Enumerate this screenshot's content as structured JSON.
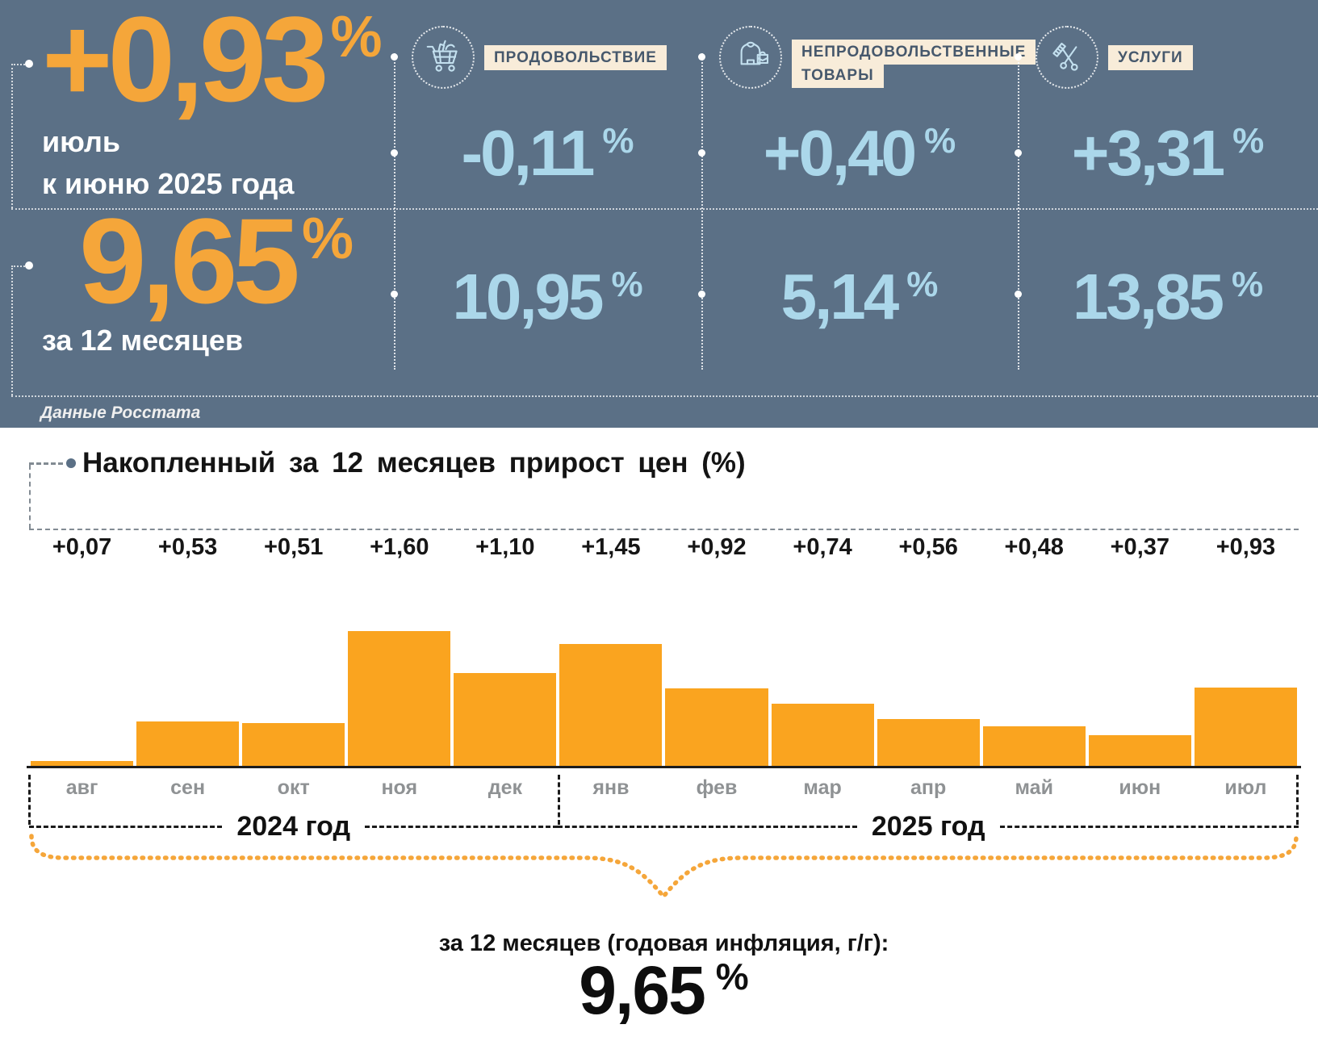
{
  "colors": {
    "hero_bg": "#5B7086",
    "accent_orange": "#F5A63A",
    "bar_orange": "#FAA41F",
    "value_blue": "#ABD7EA",
    "cream": "#F8ECD9",
    "label_text": "#46586C",
    "month_gray": "#8F9294",
    "axis_black": "#1D1D1D",
    "dash_gray": "#828B93"
  },
  "header": {
    "percent_sign": "%",
    "main": {
      "value": "+0,93",
      "caption_line1": "июль",
      "caption_line2": "к июню 2025 года"
    },
    "annual": {
      "value": "9,65",
      "caption": "за 12 месяцев"
    },
    "source": "Данные Росстата",
    "categories": [
      {
        "label": "ПРОДОВОЛЬСТВИЕ",
        "icon": "shopping-cart-icon",
        "monthly": "-0,11",
        "annual": "10,95"
      },
      {
        "label": "НЕПРОДОВОЛЬСТВЕННЫЕ\nТОВАРЫ",
        "icon": "clothing-icon",
        "monthly": "+0,40",
        "annual": "5,14"
      },
      {
        "label": "УСЛУГИ",
        "icon": "scissors-comb-icon",
        "monthly": "+3,31",
        "annual": "13,85"
      }
    ]
  },
  "chart_data": {
    "type": "bar",
    "title": "Накопленный за 12 месяцев прирост цен (%)",
    "categories": [
      "авг",
      "сен",
      "окт",
      "ноя",
      "дек",
      "янв",
      "фев",
      "мар",
      "апр",
      "май",
      "июн",
      "июл"
    ],
    "values": [
      0.07,
      0.53,
      0.51,
      1.6,
      1.1,
      1.45,
      0.92,
      0.74,
      0.56,
      0.48,
      0.37,
      0.93
    ],
    "value_labels": [
      "+0,07",
      "+0,53",
      "+0,51",
      "+1,60",
      "+1,10",
      "+1,45",
      "+0,92",
      "+0,74",
      "+0,56",
      "+0,48",
      "+0,37",
      "+0,93"
    ],
    "xlabel": "",
    "ylabel": "",
    "ylim": [
      0,
      1.6
    ],
    "grid": false,
    "legend": "none",
    "bar_color": "#FAA41F",
    "year_groups": [
      {
        "label": "2024 год",
        "from": 0,
        "to": 4
      },
      {
        "label": "2025 год",
        "from": 5,
        "to": 11
      }
    ],
    "footer": {
      "caption": "за 12 месяцев (годовая инфляция, г/г):",
      "value": "9,65",
      "percent_sign": "%"
    }
  }
}
